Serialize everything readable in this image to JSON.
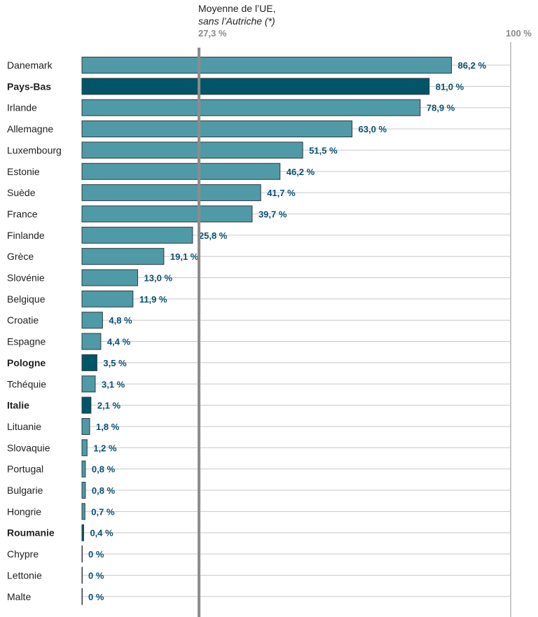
{
  "reference": {
    "title_line1": "Moyenne de l’UE,",
    "title_line2": "sans l’Autriche (*)",
    "value": 27.3,
    "value_label": "27,3 %"
  },
  "axis": {
    "max_label": "100 %",
    "xlim": [
      0,
      100
    ]
  },
  "colors": {
    "bar": "#4f9aa6",
    "highlight": "#005566",
    "value_label": "#0a4f73",
    "grid": "#c8c8c8",
    "reference_line": "#8c8c8c"
  },
  "chart_data": {
    "type": "bar",
    "orientation": "horizontal",
    "xlim": [
      0,
      100
    ],
    "categories": [
      "Danemark",
      "Pays-Bas",
      "Irlande",
      "Allemagne",
      "Luxembourg",
      "Estonie",
      "Suède",
      "France",
      "Finlande",
      "Grèce",
      "Slovénie",
      "Belgique",
      "Croatie",
      "Espagne",
      "Pologne",
      "Tchéquie",
      "Italie",
      "Lituanie",
      "Slovaquie",
      "Portugal",
      "Bulgarie",
      "Hongrie",
      "Roumanie",
      "Chypre",
      "Lettonie",
      "Malte"
    ],
    "values": [
      86.2,
      81.0,
      78.9,
      63.0,
      51.5,
      46.2,
      41.7,
      39.7,
      25.8,
      19.1,
      13.0,
      11.9,
      4.8,
      4.4,
      3.5,
      3.1,
      2.1,
      1.8,
      1.2,
      0.8,
      0.8,
      0.7,
      0.4,
      0,
      0,
      0
    ],
    "value_labels": [
      "86,2 %",
      "81,0 %",
      "78,9 %",
      "63,0 %",
      "51,5 %",
      "46,2 %",
      "41,7 %",
      "39,7 %",
      "25,8 %",
      "19,1 %",
      "13,0 %",
      "11,9 %",
      "4,8 %",
      "4,4 %",
      "3,5 %",
      "3,1 %",
      "2,1 %",
      "1,8 %",
      "1,2 %",
      "0,8 %",
      "0,8 %",
      "0,7 %",
      "0,4 %",
      "0 %",
      "0 %",
      "0 %"
    ],
    "highlighted": [
      "Pays-Bas",
      "Pologne",
      "Italie",
      "Roumanie"
    ]
  }
}
